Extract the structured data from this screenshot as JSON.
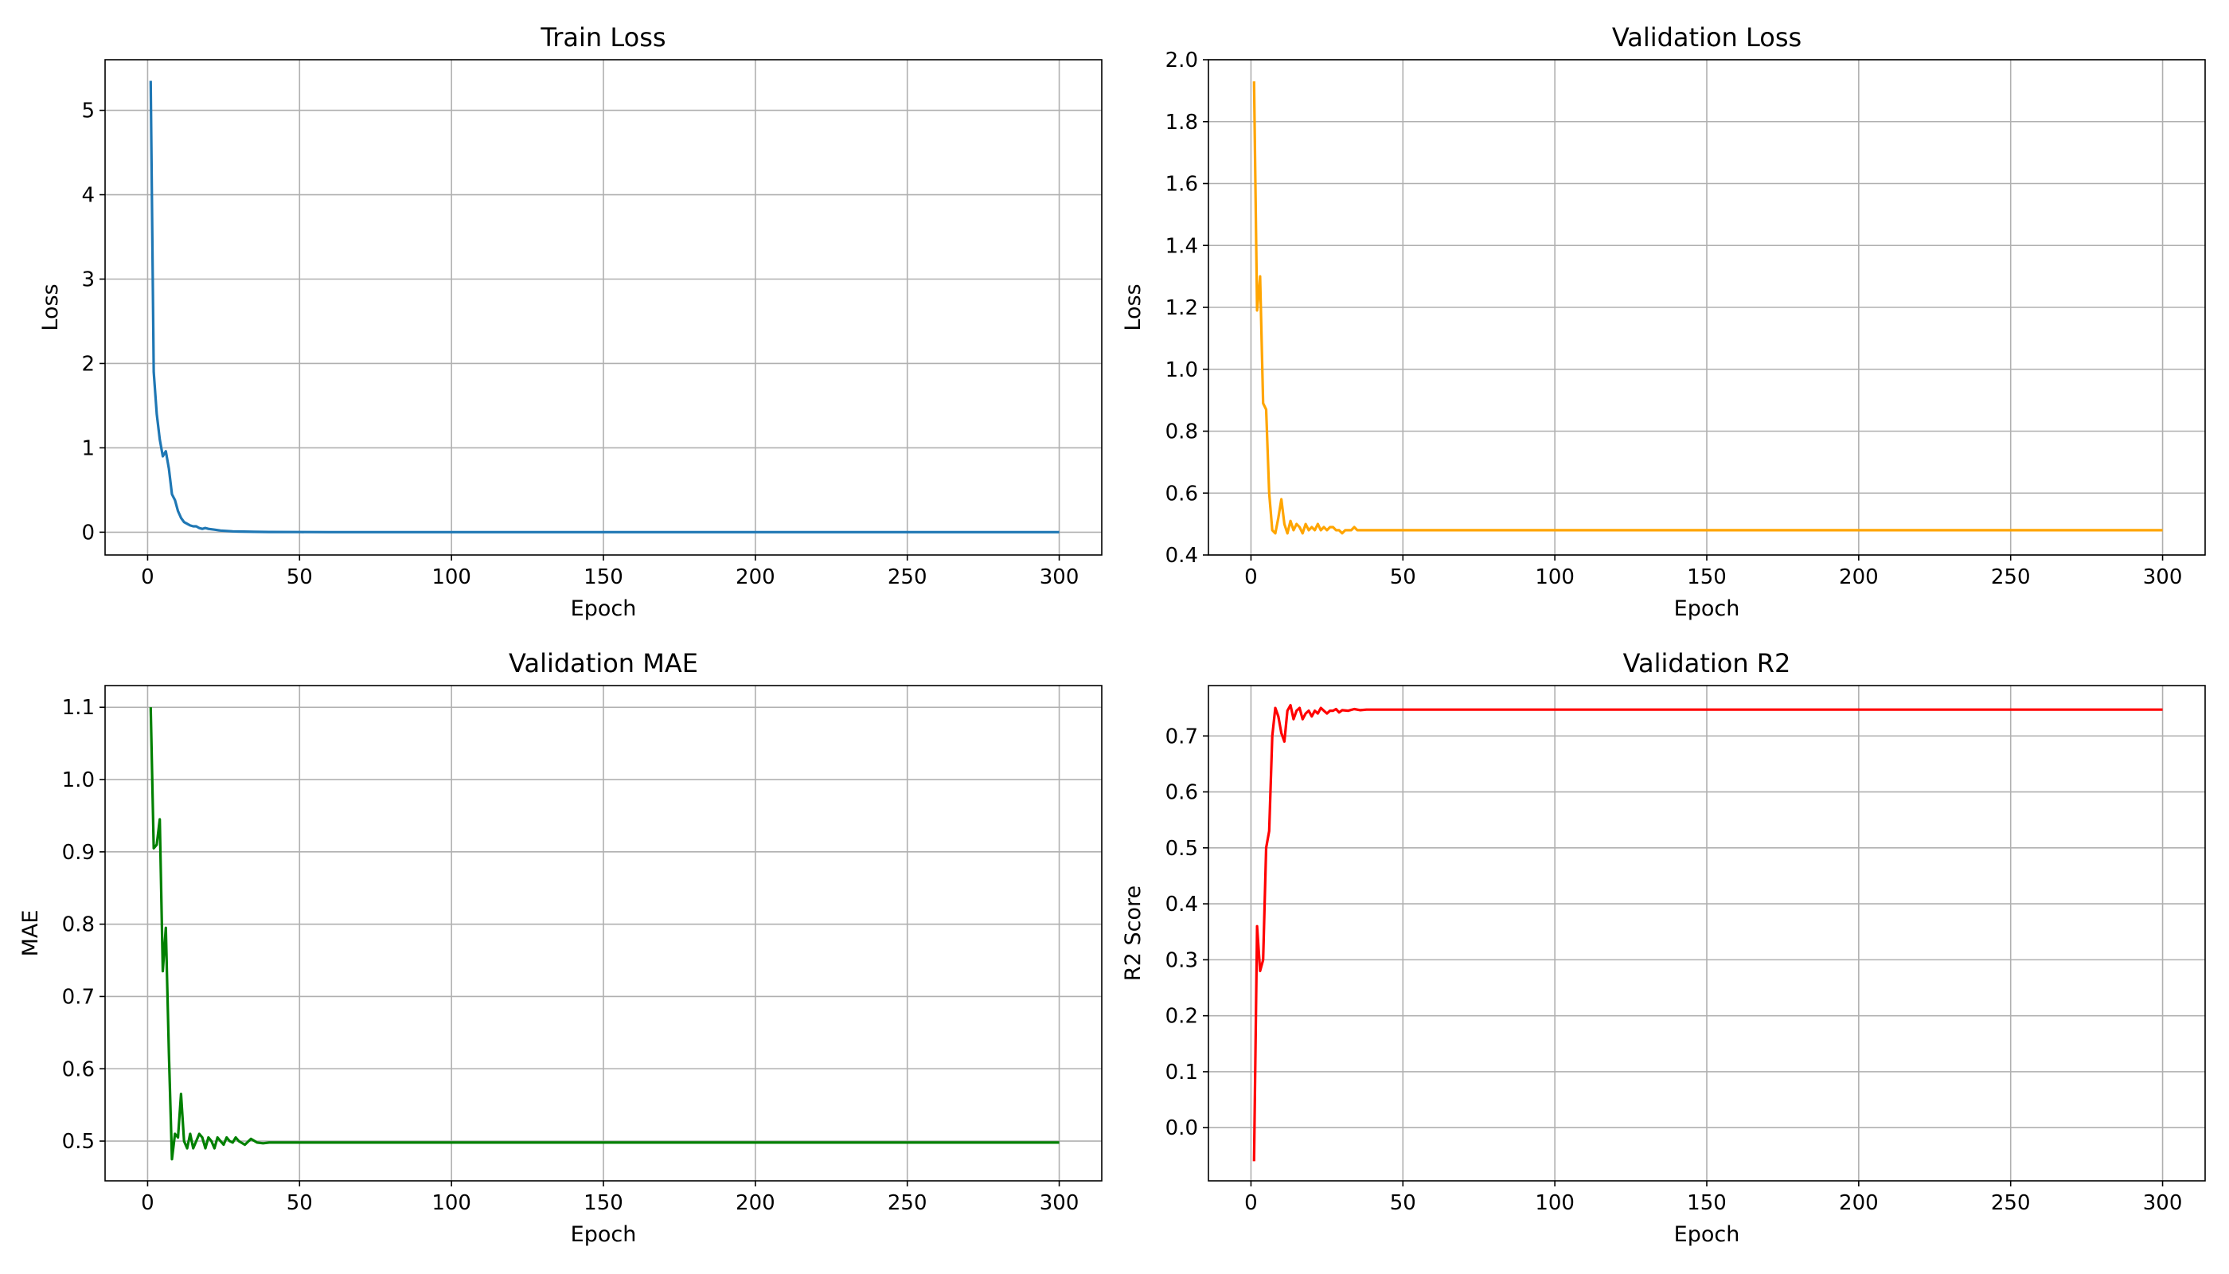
{
  "chart_data": [
    {
      "type": "line",
      "title": "Train Loss",
      "xlabel": "Epoch",
      "ylabel": "Loss",
      "xlim": [
        -14,
        314
      ],
      "ylim": [
        -0.27,
        5.6
      ],
      "xticks": [
        0,
        50,
        100,
        150,
        200,
        250,
        300
      ],
      "yticks": [
        0,
        1,
        2,
        3,
        4,
        5
      ],
      "ytick_labels": [
        "0",
        "1",
        "2",
        "3",
        "4",
        "5"
      ],
      "grid": true,
      "series": [
        {
          "color": "#1f77b4",
          "x": [
            1,
            2,
            3,
            4,
            5,
            6,
            7,
            8,
            9,
            10,
            11,
            12,
            13,
            14,
            15,
            16,
            17,
            18,
            19,
            20,
            22,
            24,
            26,
            28,
            30,
            35,
            40,
            50,
            60,
            80,
            100,
            150,
            200,
            250,
            300
          ],
          "y": [
            5.35,
            1.9,
            1.4,
            1.1,
            0.9,
            0.96,
            0.75,
            0.45,
            0.38,
            0.25,
            0.17,
            0.12,
            0.1,
            0.08,
            0.07,
            0.07,
            0.05,
            0.04,
            0.05,
            0.04,
            0.03,
            0.02,
            0.015,
            0.01,
            0.008,
            0.005,
            0.003,
            0.002,
            0.001,
            0.001,
            0.001,
            0.001,
            0.001,
            0.001,
            0.001
          ]
        }
      ]
    },
    {
      "type": "line",
      "title": "Validation Loss",
      "xlabel": "Epoch",
      "ylabel": "Loss",
      "xlim": [
        -14,
        314
      ],
      "ylim": [
        0.4,
        2.0
      ],
      "xticks": [
        0,
        50,
        100,
        150,
        200,
        250,
        300
      ],
      "yticks": [
        0.4,
        0.6,
        0.8,
        1.0,
        1.2,
        1.4,
        1.6,
        1.8,
        2.0
      ],
      "ytick_labels": [
        "0.4",
        "0.6",
        "0.8",
        "1.0",
        "1.2",
        "1.4",
        "1.6",
        "1.8",
        "2.0"
      ],
      "grid": true,
      "series": [
        {
          "color": "#ffa500",
          "x": [
            1,
            2,
            3,
            4,
            5,
            6,
            7,
            8,
            9,
            10,
            11,
            12,
            13,
            14,
            15,
            16,
            17,
            18,
            19,
            20,
            21,
            22,
            23,
            24,
            25,
            26,
            27,
            28,
            29,
            30,
            31,
            32,
            33,
            34,
            35,
            36,
            38,
            40,
            45,
            50,
            60,
            80,
            100,
            150,
            200,
            250,
            300
          ],
          "y": [
            1.93,
            1.19,
            1.3,
            0.89,
            0.87,
            0.6,
            0.48,
            0.47,
            0.52,
            0.58,
            0.5,
            0.47,
            0.51,
            0.48,
            0.5,
            0.49,
            0.47,
            0.5,
            0.48,
            0.49,
            0.48,
            0.5,
            0.48,
            0.49,
            0.48,
            0.49,
            0.49,
            0.48,
            0.48,
            0.47,
            0.48,
            0.48,
            0.48,
            0.49,
            0.48,
            0.48,
            0.48,
            0.48,
            0.48,
            0.48,
            0.48,
            0.48,
            0.48,
            0.48,
            0.48,
            0.48,
            0.48
          ]
        }
      ]
    },
    {
      "type": "line",
      "title": "Validation MAE",
      "xlabel": "Epoch",
      "ylabel": "MAE",
      "xlim": [
        -14,
        314
      ],
      "ylim": [
        0.445,
        1.13
      ],
      "xticks": [
        0,
        50,
        100,
        150,
        200,
        250,
        300
      ],
      "yticks": [
        0.5,
        0.6,
        0.7,
        0.8,
        0.9,
        1.0,
        1.1
      ],
      "ytick_labels": [
        "0.5",
        "0.6",
        "0.7",
        "0.8",
        "0.9",
        "1.0",
        "1.1"
      ],
      "grid": true,
      "series": [
        {
          "color": "#008000",
          "x": [
            1,
            2,
            3,
            4,
            5,
            6,
            7,
            8,
            9,
            10,
            11,
            12,
            13,
            14,
            15,
            16,
            17,
            18,
            19,
            20,
            21,
            22,
            23,
            24,
            25,
            26,
            27,
            28,
            29,
            30,
            32,
            34,
            36,
            38,
            40,
            45,
            50,
            60,
            80,
            100,
            150,
            200,
            250,
            300
          ],
          "y": [
            1.1,
            0.905,
            0.91,
            0.945,
            0.735,
            0.795,
            0.62,
            0.475,
            0.51,
            0.505,
            0.565,
            0.5,
            0.49,
            0.51,
            0.49,
            0.5,
            0.51,
            0.505,
            0.49,
            0.505,
            0.5,
            0.49,
            0.505,
            0.5,
            0.495,
            0.505,
            0.5,
            0.498,
            0.505,
            0.5,
            0.495,
            0.503,
            0.498,
            0.497,
            0.498,
            0.498,
            0.498,
            0.498,
            0.498,
            0.498,
            0.498,
            0.498,
            0.498,
            0.498
          ]
        }
      ]
    },
    {
      "type": "line",
      "title": "Validation R2",
      "xlabel": "Epoch",
      "ylabel": "R2 Score",
      "xlim": [
        -14,
        314
      ],
      "ylim": [
        -0.095,
        0.79
      ],
      "xticks": [
        0,
        50,
        100,
        150,
        200,
        250,
        300
      ],
      "yticks": [
        0.0,
        0.1,
        0.2,
        0.3,
        0.4,
        0.5,
        0.6,
        0.7
      ],
      "ytick_labels": [
        "0.0",
        "0.1",
        "0.2",
        "0.3",
        "0.4",
        "0.5",
        "0.6",
        "0.7"
      ],
      "grid": true,
      "series": [
        {
          "color": "#ff0000",
          "x": [
            1,
            2,
            3,
            4,
            5,
            6,
            7,
            8,
            9,
            10,
            11,
            12,
            13,
            14,
            15,
            16,
            17,
            18,
            19,
            20,
            21,
            22,
            23,
            24,
            25,
            26,
            27,
            28,
            29,
            30,
            32,
            34,
            36,
            38,
            40,
            45,
            50,
            60,
            80,
            100,
            150,
            200,
            250,
            300
          ],
          "y": [
            -0.06,
            0.36,
            0.28,
            0.3,
            0.5,
            0.53,
            0.7,
            0.75,
            0.735,
            0.705,
            0.69,
            0.745,
            0.755,
            0.73,
            0.745,
            0.75,
            0.73,
            0.74,
            0.745,
            0.735,
            0.745,
            0.74,
            0.75,
            0.745,
            0.74,
            0.745,
            0.745,
            0.748,
            0.742,
            0.746,
            0.745,
            0.748,
            0.746,
            0.747,
            0.747,
            0.747,
            0.747,
            0.747,
            0.747,
            0.747,
            0.747,
            0.747,
            0.747,
            0.747
          ]
        }
      ]
    }
  ]
}
